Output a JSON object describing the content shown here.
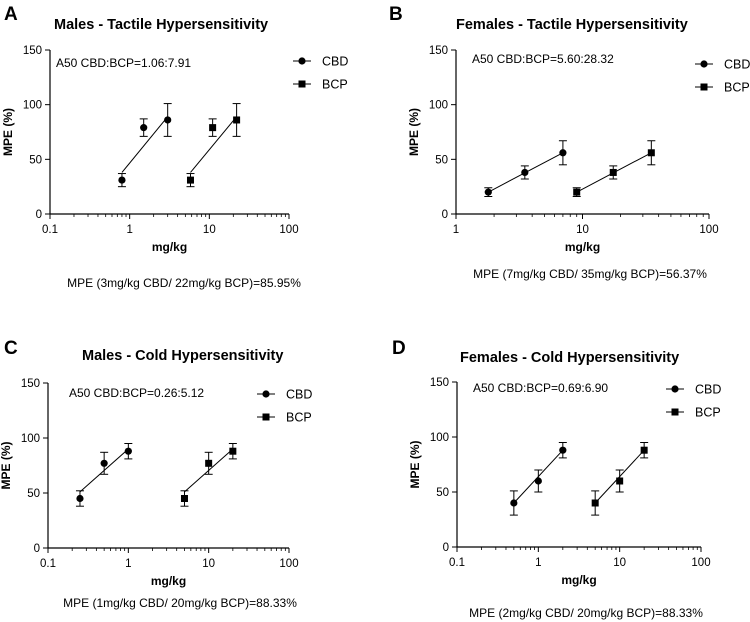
{
  "chart_data": [
    {
      "type": "scatter",
      "panel_label": "A",
      "title": "Males - Tactile Hypersensitivity",
      "xlabel": "mg/kg",
      "ylabel": "MPE (%)",
      "xscale": "log",
      "xlim": [
        0.1,
        100
      ],
      "ylim": [
        0,
        150
      ],
      "xticks": [
        "0.1",
        "1",
        "10",
        "100"
      ],
      "yticks": [
        "0",
        "50",
        "100",
        "150"
      ],
      "annotation": "A50 CBD:BCP=1.06:7.91",
      "footnote": "MPE (3mg/kg CBD/ 22mg/kg BCP)=85.95%",
      "legend_position": "top-right",
      "series": [
        {
          "name": "CBD",
          "marker": "circle",
          "x": [
            0.8,
            1.5,
            3
          ],
          "y": [
            31,
            79,
            86
          ],
          "err": [
            6,
            8,
            15
          ],
          "fit": [
            [
              0.8,
              38
            ],
            [
              3,
              89
            ]
          ]
        },
        {
          "name": "BCP",
          "marker": "square",
          "x": [
            5.8,
            11,
            22
          ],
          "y": [
            31,
            79,
            86
          ],
          "err": [
            6,
            8,
            15
          ],
          "fit": [
            [
              5.8,
              38
            ],
            [
              22,
              89
            ]
          ]
        }
      ]
    },
    {
      "type": "scatter",
      "panel_label": "B",
      "title": "Females - Tactile Hypersensitivity",
      "xlabel": "mg/kg",
      "ylabel": "MPE (%)",
      "xscale": "log",
      "xlim": [
        1,
        100
      ],
      "ylim": [
        0,
        150
      ],
      "xticks": [
        "1",
        "10",
        "100"
      ],
      "yticks": [
        "0",
        "50",
        "100",
        "150"
      ],
      "annotation": "A50 CBD:BCP=5.60:28.32",
      "footnote": "MPE (7mg/kg CBD/ 35mg/kg BCP)=56.37%",
      "legend_position": "top-right",
      "series": [
        {
          "name": "CBD",
          "marker": "circle",
          "x": [
            1.8,
            3.5,
            7
          ],
          "y": [
            20,
            38,
            56
          ],
          "err": [
            4,
            6,
            11
          ],
          "fit": [
            [
              1.8,
              20
            ],
            [
              7,
              56
            ]
          ]
        },
        {
          "name": "BCP",
          "marker": "square",
          "x": [
            9,
            17.5,
            35
          ],
          "y": [
            20,
            38,
            56
          ],
          "err": [
            4,
            6,
            11
          ],
          "fit": [
            [
              9,
              20
            ],
            [
              35,
              56
            ]
          ]
        }
      ]
    },
    {
      "type": "scatter",
      "panel_label": "C",
      "title": "Males - Cold Hypersensitivity",
      "xlabel": "mg/kg",
      "ylabel": "MPE (%)",
      "xscale": "log",
      "xlim": [
        0.1,
        100
      ],
      "ylim": [
        0,
        150
      ],
      "xticks": [
        "0.1",
        "1",
        "10",
        "100"
      ],
      "yticks": [
        "0",
        "50",
        "100",
        "150"
      ],
      "annotation": "A50 CBD:BCP=0.26:5.12",
      "footnote": "MPE (1mg/kg CBD/ 20mg/kg BCP)=88.33%",
      "legend_position": "top-right",
      "series": [
        {
          "name": "CBD",
          "marker": "circle",
          "x": [
            0.25,
            0.5,
            1
          ],
          "y": [
            45,
            77,
            88
          ],
          "err": [
            7,
            10,
            7
          ],
          "fit": [
            [
              0.25,
              51
            ],
            [
              1,
              90
            ]
          ]
        },
        {
          "name": "BCP",
          "marker": "square",
          "x": [
            5,
            10,
            20
          ],
          "y": [
            45,
            77,
            88
          ],
          "err": [
            7,
            10,
            7
          ],
          "fit": [
            [
              5,
              51
            ],
            [
              20,
              90
            ]
          ]
        }
      ]
    },
    {
      "type": "scatter",
      "panel_label": "D",
      "title": "Females - Cold Hypersensitivity",
      "xlabel": "mg/kg",
      "ylabel": "MPE (%)",
      "xscale": "log",
      "xlim": [
        0.1,
        100
      ],
      "ylim": [
        0,
        150
      ],
      "xticks": [
        "0.1",
        "1",
        "10",
        "100"
      ],
      "yticks": [
        "0",
        "50",
        "100",
        "150"
      ],
      "annotation": "A50 CBD:BCP=0.69:6.90",
      "footnote": "MPE (2mg/kg CBD/ 20mg/kg BCP)=88.33%",
      "legend_position": "top-right",
      "series": [
        {
          "name": "CBD",
          "marker": "circle",
          "x": [
            0.5,
            1,
            2
          ],
          "y": [
            40,
            60,
            88
          ],
          "err": [
            11,
            10,
            7
          ],
          "fit": [
            [
              0.5,
              40
            ],
            [
              2,
              88
            ]
          ]
        },
        {
          "name": "BCP",
          "marker": "square",
          "x": [
            5,
            10,
            20
          ],
          "y": [
            40,
            60,
            88
          ],
          "err": [
            11,
            10,
            7
          ],
          "fit": [
            [
              5,
              40
            ],
            [
              20,
              88
            ]
          ]
        }
      ]
    }
  ]
}
